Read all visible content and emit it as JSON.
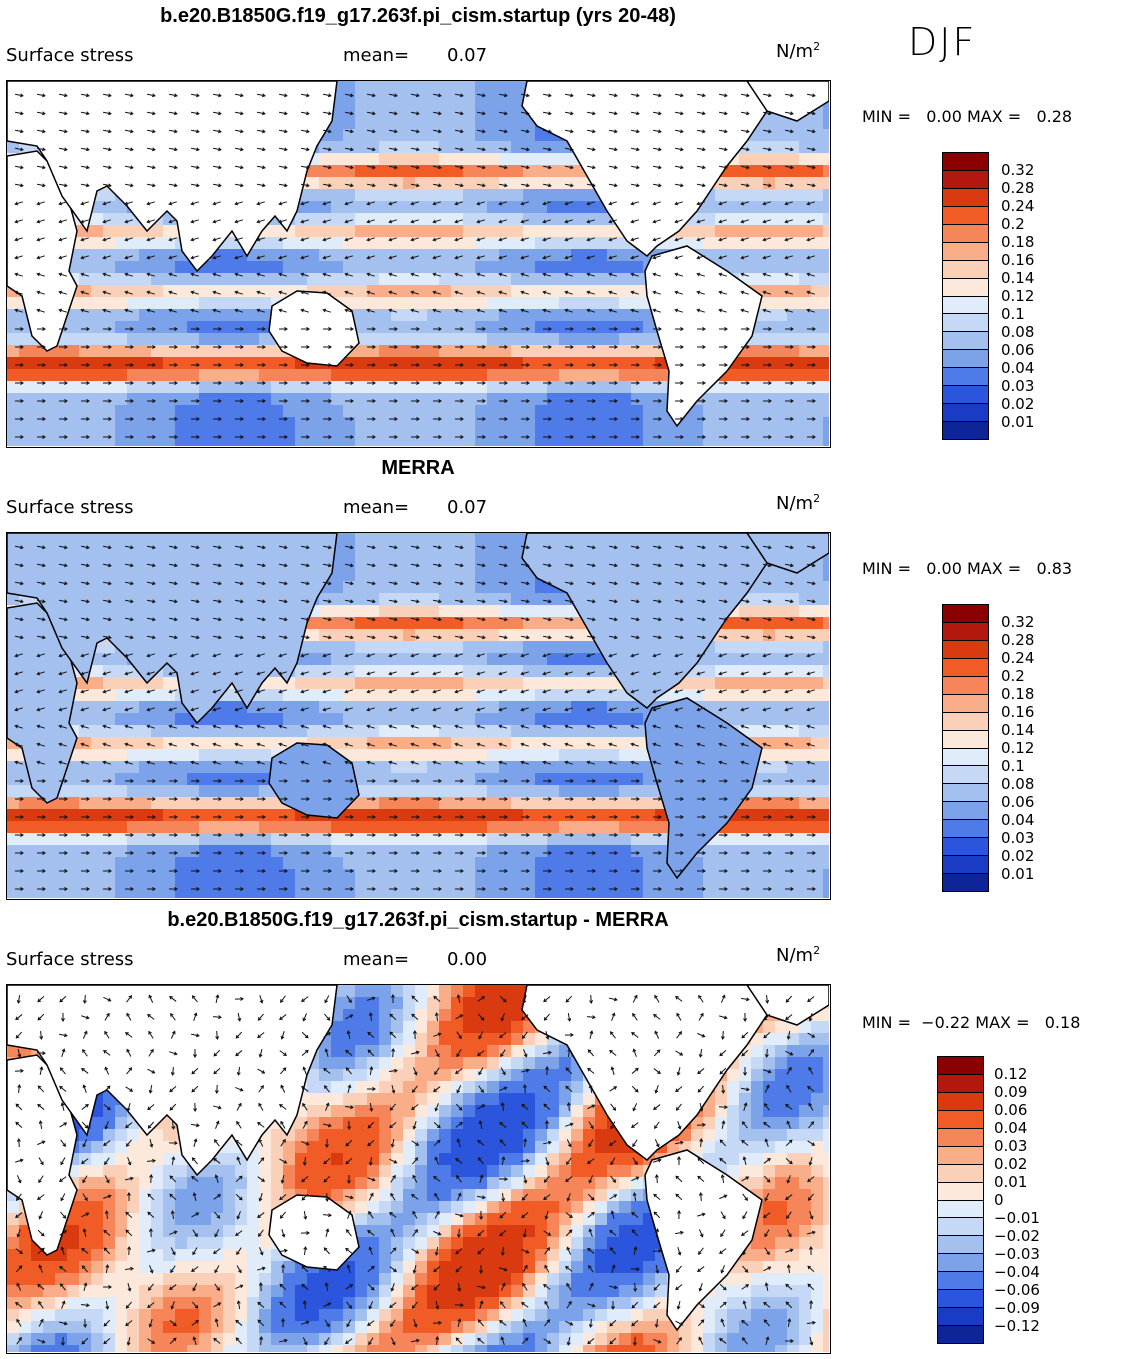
{
  "season": "DJF",
  "panels": [
    {
      "title": "b.e20.B1850G.f19_g17.263f.pi_cism.startup (yrs 20-48)",
      "variable": "Surface stress",
      "mean_label": "mean=",
      "mean_value": "0.07",
      "units": "N/m",
      "units_exp": "2",
      "min_label": "MIN =",
      "min_value": "0.00",
      "max_label": "MAX =",
      "max_value": "0.28",
      "colorbar_labels": [
        "0.32",
        "0.28",
        "0.24",
        "0.2",
        "0.18",
        "0.16",
        "0.14",
        "0.12",
        "0.1",
        "0.08",
        "0.06",
        "0.04",
        "0.03",
        "0.02",
        "0.01"
      ],
      "colorbar_colors": [
        "#8b0000",
        "#b2180e",
        "#d93a0f",
        "#f05b26",
        "#f6865a",
        "#f9ad89",
        "#fbd0b8",
        "#fde9dc",
        "#e1ecfa",
        "#c5d8f5",
        "#a3c0ef",
        "#7ca2ea",
        "#4e7be8",
        "#2a55dc",
        "#1a3cc4",
        "#0d2596"
      ]
    },
    {
      "title": "MERRA",
      "variable": "Surface stress",
      "mean_label": "mean=",
      "mean_value": "0.07",
      "units": "N/m",
      "units_exp": "2",
      "min_label": "MIN =",
      "min_value": "0.00",
      "max_label": "MAX =",
      "max_value": "0.83",
      "colorbar_labels": [
        "0.32",
        "0.28",
        "0.24",
        "0.2",
        "0.18",
        "0.16",
        "0.14",
        "0.12",
        "0.1",
        "0.08",
        "0.06",
        "0.04",
        "0.03",
        "0.02",
        "0.01"
      ],
      "colorbar_colors": [
        "#8b0000",
        "#b2180e",
        "#d93a0f",
        "#f05b26",
        "#f6865a",
        "#f9ad89",
        "#fbd0b8",
        "#fde9dc",
        "#e1ecfa",
        "#c5d8f5",
        "#a3c0ef",
        "#7ca2ea",
        "#4e7be8",
        "#2a55dc",
        "#1a3cc4",
        "#0d2596"
      ]
    },
    {
      "title": "b.e20.B1850G.f19_g17.263f.pi_cism.startup - MERRA",
      "variable": "Surface stress",
      "mean_label": "mean=",
      "mean_value": "0.00",
      "units": "N/m",
      "units_exp": "2",
      "min_label": "MIN =",
      "min_value": "−0.22",
      "max_label": "MAX =",
      "max_value": "0.18",
      "colorbar_labels": [
        "0.12",
        "0.09",
        "0.06",
        "0.04",
        "0.03",
        "0.02",
        "0.01",
        "0",
        "−0.01",
        "−0.02",
        "−0.03",
        "−0.04",
        "−0.06",
        "−0.09",
        "−0.12"
      ],
      "colorbar_colors": [
        "#8b0000",
        "#b2180e",
        "#d93a0f",
        "#f05b26",
        "#f6865a",
        "#f9ad89",
        "#fbd0b8",
        "#fde9dc",
        "#e1ecfa",
        "#c5d8f5",
        "#a3c0ef",
        "#7ca2ea",
        "#4e7be8",
        "#2a55dc",
        "#1a3cc4",
        "#0d2596"
      ]
    }
  ],
  "map_colors": {
    "land": "#ffffff",
    "coast": "#000000",
    "arrow": "#111111"
  }
}
